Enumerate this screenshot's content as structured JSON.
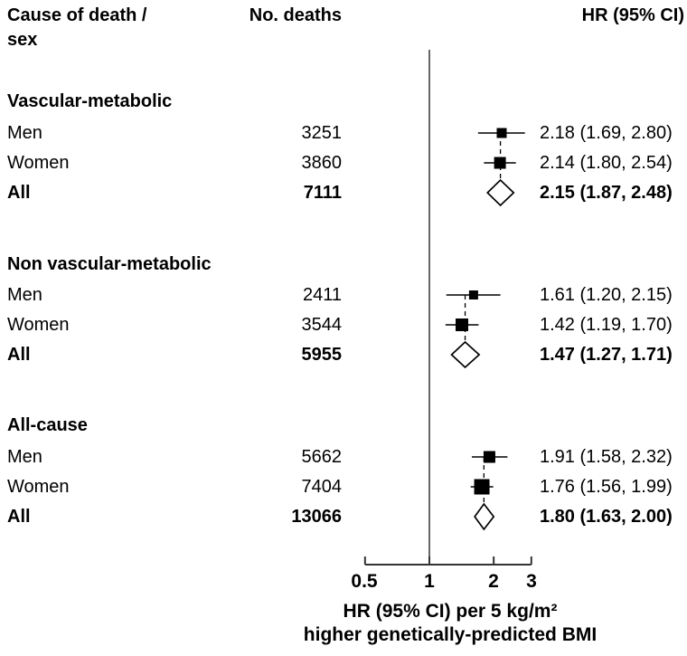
{
  "title_column": {
    "line1": "Cause of death /",
    "line2": "sex"
  },
  "columns": {
    "deaths": "No. deaths",
    "hr": "HR (95% CI)"
  },
  "chart_data": {
    "type": "forest",
    "x_axis": {
      "scale": "log",
      "ticks": [
        0.5,
        1,
        2,
        3
      ],
      "tick_labels": [
        "0.5",
        "1",
        "2",
        "3"
      ],
      "reference_line": 1,
      "range": [
        0.5,
        3
      ]
    },
    "xlabel": {
      "line1": "HR (95% CI) per 5 kg/m²",
      "line2": "higher genetically-predicted BMI"
    },
    "colors": {
      "marker": "#000000",
      "axis_line": "#333333",
      "diamond_fill": "#ffffff"
    },
    "groups": [
      {
        "name": "Vascular-metabolic",
        "rows": [
          {
            "label": "Men",
            "deaths": "3251",
            "hr": 2.18,
            "ci_low": 1.69,
            "ci_high": 2.8,
            "hr_text": "2.18 (1.69, 2.80)",
            "marker": "square",
            "marker_size": 11,
            "bold": false
          },
          {
            "label": "Women",
            "deaths": "3860",
            "hr": 2.14,
            "ci_low": 1.8,
            "ci_high": 2.54,
            "hr_text": "2.14 (1.80, 2.54)",
            "marker": "square",
            "marker_size": 13,
            "bold": false
          },
          {
            "label": "All",
            "deaths": "7111",
            "hr": 2.15,
            "ci_low": 1.87,
            "ci_high": 2.48,
            "hr_text": "2.15 (1.87, 2.48)",
            "marker": "diamond",
            "bold": true
          }
        ]
      },
      {
        "name": "Non vascular-metabolic",
        "rows": [
          {
            "label": "Men",
            "deaths": "2411",
            "hr": 1.61,
            "ci_low": 1.2,
            "ci_high": 2.15,
            "hr_text": "1.61 (1.20, 2.15)",
            "marker": "square",
            "marker_size": 10,
            "bold": false
          },
          {
            "label": "Women",
            "deaths": "3544",
            "hr": 1.42,
            "ci_low": 1.19,
            "ci_high": 1.7,
            "hr_text": "1.42 (1.19, 1.70)",
            "marker": "square",
            "marker_size": 14,
            "bold": false
          },
          {
            "label": "All",
            "deaths": "5955",
            "hr": 1.47,
            "ci_low": 1.27,
            "ci_high": 1.71,
            "hr_text": "1.47 (1.27, 1.71)",
            "marker": "diamond",
            "bold": true
          }
        ]
      },
      {
        "name": "All-cause",
        "rows": [
          {
            "label": "Men",
            "deaths": "5662",
            "hr": 1.91,
            "ci_low": 1.58,
            "ci_high": 2.32,
            "hr_text": "1.91 (1.58, 2.32)",
            "marker": "square",
            "marker_size": 13,
            "bold": false
          },
          {
            "label": "Women",
            "deaths": "7404",
            "hr": 1.76,
            "ci_low": 1.56,
            "ci_high": 1.99,
            "hr_text": "1.76 (1.56, 1.99)",
            "marker": "square",
            "marker_size": 17,
            "bold": false
          },
          {
            "label": "All",
            "deaths": "13066",
            "hr": 1.8,
            "ci_low": 1.63,
            "ci_high": 2.0,
            "hr_text": "1.80 (1.63, 2.00)",
            "marker": "diamond",
            "bold": true
          }
        ]
      }
    ]
  }
}
